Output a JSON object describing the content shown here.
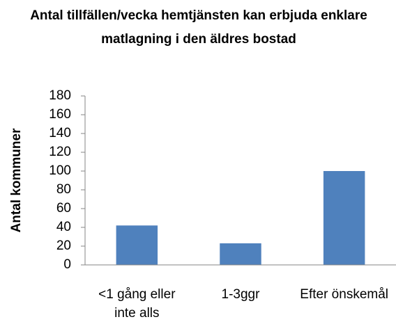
{
  "chart_data": {
    "type": "bar",
    "title": "Antal tillfällen/vecka hemtjänsten kan erbjuda enklare matlagning i den äldres bostad",
    "y_label": "Antal kommuner",
    "categories": [
      "<1 gång eller inte alls",
      "1-3ggr",
      "Efter önskemål"
    ],
    "values": [
      42,
      23,
      100
    ],
    "color": "#4f81bd",
    "ylim": [
      0,
      180
    ],
    "yticks": [
      0,
      20,
      40,
      60,
      80,
      100,
      120,
      140,
      160,
      180
    ],
    "grid": false
  }
}
